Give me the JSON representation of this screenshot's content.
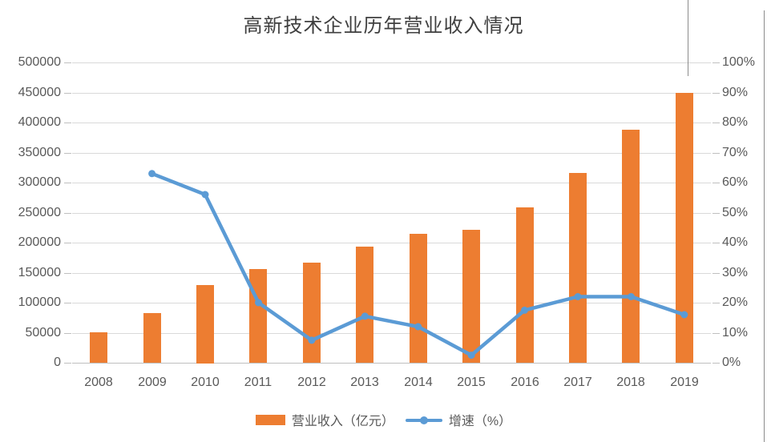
{
  "chart_data": {
    "type": "bar",
    "title": "高新技术企业历年营业收入情况",
    "categories": [
      "2008",
      "2009",
      "2010",
      "2011",
      "2012",
      "2013",
      "2014",
      "2015",
      "2016",
      "2017",
      "2018",
      "2019"
    ],
    "series": [
      {
        "name": "营业收入（亿元）",
        "type": "bar",
        "axis": "left",
        "color": "#ed7d31",
        "values": [
          51000,
          83000,
          130000,
          156000,
          167000,
          193000,
          215000,
          221000,
          259000,
          316000,
          388000,
          449000
        ]
      },
      {
        "name": "增速（%）",
        "type": "line",
        "axis": "right",
        "color": "#5b9bd5",
        "values": [
          null,
          63,
          56,
          20,
          7.5,
          15.5,
          12,
          2.5,
          17.5,
          22,
          22,
          16
        ]
      }
    ],
    "left_axis": {
      "min": 0,
      "max": 500000,
      "step": 50000,
      "tick_labels": [
        "0",
        "50000",
        "100000",
        "150000",
        "200000",
        "250000",
        "300000",
        "350000",
        "400000",
        "450000",
        "500000"
      ]
    },
    "right_axis": {
      "min": 0,
      "max": 100,
      "step": 10,
      "tick_labels": [
        "0%",
        "10%",
        "20%",
        "30%",
        "40%",
        "50%",
        "60%",
        "70%",
        "80%",
        "90%",
        "100%"
      ]
    },
    "legend_position": "bottom",
    "grid": true
  },
  "legend": {
    "bar_label": "营业收入（亿元）",
    "line_label": "增速（%）"
  },
  "colors": {
    "bar": "#ed7d31",
    "line": "#5b9bd5",
    "gridline": "#d9d9d9",
    "axis_text": "#595959",
    "title_text": "#3f3f3f"
  }
}
